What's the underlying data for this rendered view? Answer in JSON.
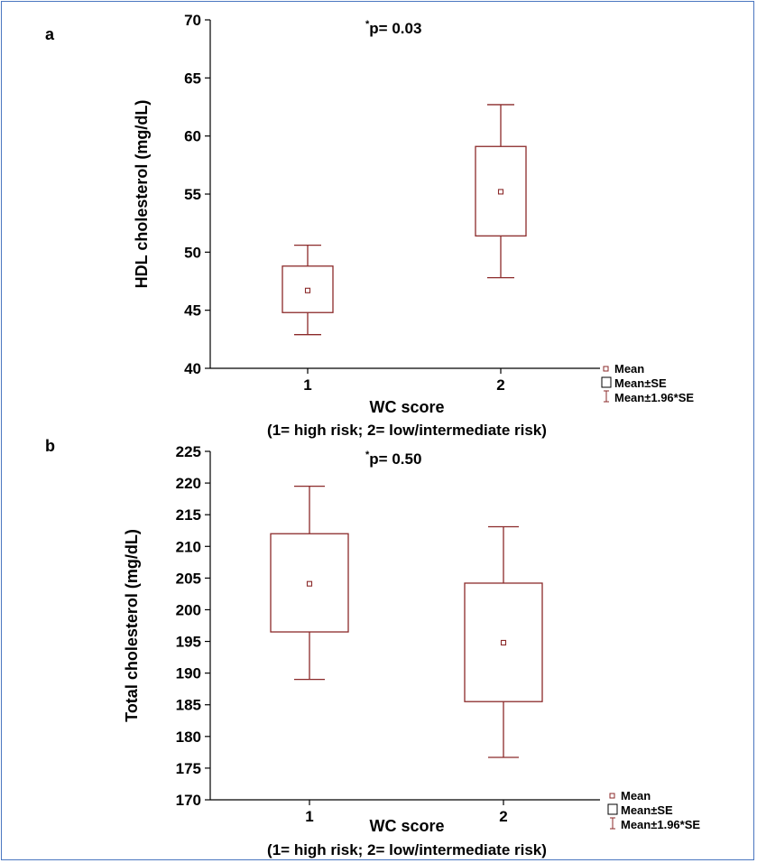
{
  "chart_data": [
    {
      "panel_label": "a",
      "type": "box",
      "annotation_prefix": "*",
      "annotation": "p= 0.03",
      "xlabel": "WC score",
      "xlabel_sub": "(1= high risk; 2= low/intermediate risk)",
      "ylabel": "HDL cholesterol (mg/dL)",
      "ylim": [
        40,
        70
      ],
      "yticks": [
        40,
        45,
        50,
        55,
        60,
        65,
        70
      ],
      "categories": [
        "1",
        "2"
      ],
      "groups": [
        {
          "category": "1",
          "mean": 46.7,
          "se_low": 44.8,
          "se_high": 48.8,
          "ci_low": 42.9,
          "ci_high": 50.6
        },
        {
          "category": "2",
          "mean": 55.2,
          "se_low": 51.4,
          "se_high": 59.1,
          "ci_low": 47.8,
          "ci_high": 62.7
        }
      ],
      "legend": [
        {
          "symbol": "point",
          "label": "Mean"
        },
        {
          "symbol": "box",
          "label": "Mean±SE"
        },
        {
          "symbol": "whisker",
          "label": "Mean±1.96*SE"
        }
      ],
      "colors": {
        "box": "#8b2a2a",
        "axis": "#000000"
      }
    },
    {
      "panel_label": "b",
      "type": "box",
      "annotation_prefix": "*",
      "annotation": "p= 0.50",
      "xlabel": "WC score",
      "xlabel_sub": "(1= high risk; 2= low/intermediate risk)",
      "ylabel": "Total cholesterol (mg/dL)",
      "ylim": [
        170,
        225
      ],
      "yticks": [
        170,
        175,
        180,
        185,
        190,
        195,
        200,
        205,
        210,
        215,
        220,
        225
      ],
      "categories": [
        "1",
        "2"
      ],
      "groups": [
        {
          "category": "1",
          "mean": 204.1,
          "se_low": 196.5,
          "se_high": 212.0,
          "ci_low": 189.0,
          "ci_high": 219.5
        },
        {
          "category": "2",
          "mean": 194.8,
          "se_low": 185.5,
          "se_high": 204.2,
          "ci_low": 176.7,
          "ci_high": 213.1
        }
      ],
      "legend": [
        {
          "symbol": "point",
          "label": "Mean"
        },
        {
          "symbol": "box",
          "label": "Mean±SE"
        },
        {
          "symbol": "whisker",
          "label": "Mean±1.96*SE"
        }
      ],
      "colors": {
        "box": "#8b2a2a",
        "axis": "#000000"
      }
    }
  ]
}
